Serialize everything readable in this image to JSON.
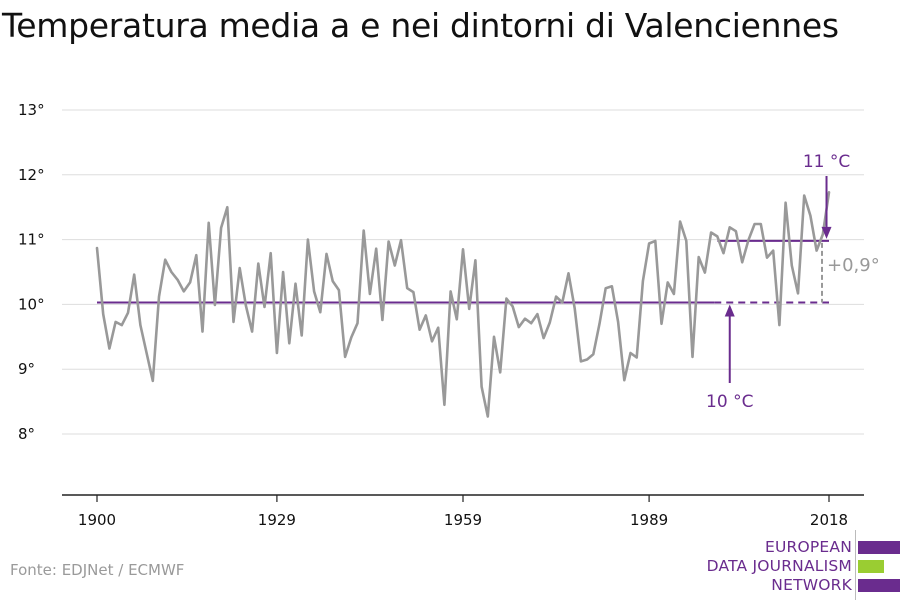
{
  "title": "Temperatura media a e nei dintorni di Valenciennes",
  "source": "Fonte: EDJNet / ECMWF",
  "logo": {
    "lines": [
      "EUROPEAN",
      "DATA JOURNALISM",
      "NETWORK"
    ],
    "colors": [
      "#6a2c8e",
      "#9acd32",
      "#6a2c8e"
    ]
  },
  "chart_data": {
    "type": "line",
    "title": "Temperatura media a e nei dintorni di Valenciennes",
    "xlabel": "",
    "ylabel": "",
    "xlim": [
      1900,
      2018
    ],
    "ylim": [
      7,
      13
    ],
    "yticks": [
      8,
      9,
      10,
      11,
      12,
      13
    ],
    "ytick_labels": [
      "8°",
      "9°",
      "10°",
      "11°",
      "12°",
      "13°"
    ],
    "xticks": [
      1900,
      1929,
      1959,
      1989,
      2018
    ],
    "xtick_labels": [
      "1900",
      "1929",
      "1959",
      "1989",
      "2018"
    ],
    "grid": true,
    "legend": "none",
    "colors": {
      "series": "#999999",
      "reference": "#6a2c8e",
      "annotation_gray": "#999999"
    },
    "series": [
      {
        "x": [
          1900,
          1901,
          1902,
          1903,
          1904,
          1905,
          1906,
          1907,
          1908,
          1909,
          1910,
          1911,
          1912,
          1913,
          1914,
          1915,
          1916,
          1917,
          1918,
          1919,
          1920,
          1921,
          1922,
          1923,
          1924,
          1925,
          1926,
          1927,
          1928,
          1929,
          1930,
          1931,
          1932,
          1933,
          1934,
          1935,
          1936,
          1937,
          1938,
          1939,
          1940,
          1941,
          1942,
          1943,
          1944,
          1945,
          1946,
          1947,
          1948,
          1949,
          1950,
          1951,
          1952,
          1953,
          1954,
          1955,
          1956,
          1957,
          1958,
          1959,
          1960,
          1961,
          1962,
          1963,
          1964,
          1965,
          1966,
          1967,
          1968,
          1969,
          1970,
          1971,
          1972,
          1973,
          1974,
          1975,
          1976,
          1977,
          1978,
          1979,
          1980,
          1981,
          1982,
          1983,
          1984,
          1985,
          1986,
          1987,
          1988,
          1989,
          1990,
          1991,
          1992,
          1993,
          1994,
          1995,
          1996,
          1997,
          1998,
          1999,
          2000,
          2001,
          2002,
          2003,
          2004,
          2005,
          2006,
          2007,
          2008,
          2009,
          2010,
          2011,
          2012,
          2013,
          2014,
          2015,
          2016,
          2017,
          2018
        ],
        "values": [
          10.87,
          9.85,
          9.32,
          9.73,
          9.68,
          9.87,
          10.46,
          9.68,
          9.25,
          8.82,
          10.12,
          10.69,
          10.5,
          10.38,
          10.2,
          10.34,
          10.76,
          9.58,
          11.26,
          9.99,
          11.18,
          11.5,
          9.73,
          10.56,
          9.98,
          9.58,
          10.63,
          9.96,
          10.79,
          9.25,
          10.5,
          9.4,
          10.32,
          9.52,
          11.0,
          10.2,
          9.88,
          10.78,
          10.36,
          10.22,
          9.19,
          9.49,
          9.71,
          11.14,
          10.16,
          10.86,
          9.76,
          10.97,
          10.6,
          10.99,
          10.25,
          10.19,
          9.61,
          9.83,
          9.43,
          9.64,
          8.45,
          10.2,
          9.77,
          10.85,
          9.93,
          10.68,
          8.73,
          8.27,
          9.5,
          8.95,
          10.09,
          9.97,
          9.65,
          9.78,
          9.71,
          9.85,
          9.48,
          9.72,
          10.12,
          10.03,
          10.48,
          9.94,
          9.12,
          9.15,
          9.23,
          9.7,
          10.25,
          10.28,
          9.73,
          8.83,
          9.25,
          9.18,
          10.36,
          10.94,
          10.98,
          9.7,
          10.34,
          10.16,
          11.28,
          10.98,
          9.19,
          10.73,
          10.49,
          11.11,
          11.05,
          10.79,
          11.19,
          11.13,
          10.65,
          10.99,
          11.24,
          11.24,
          10.72,
          10.83,
          9.68,
          11.57,
          10.6,
          10.17,
          11.68,
          11.37,
          10.83,
          11.08,
          11.73
        ]
      }
    ],
    "reference_lines": [
      {
        "label": "10 °C",
        "value": 10.03
      },
      {
        "label": "11 °C",
        "value": 10.98
      }
    ],
    "difference_label": "+0,9°"
  }
}
